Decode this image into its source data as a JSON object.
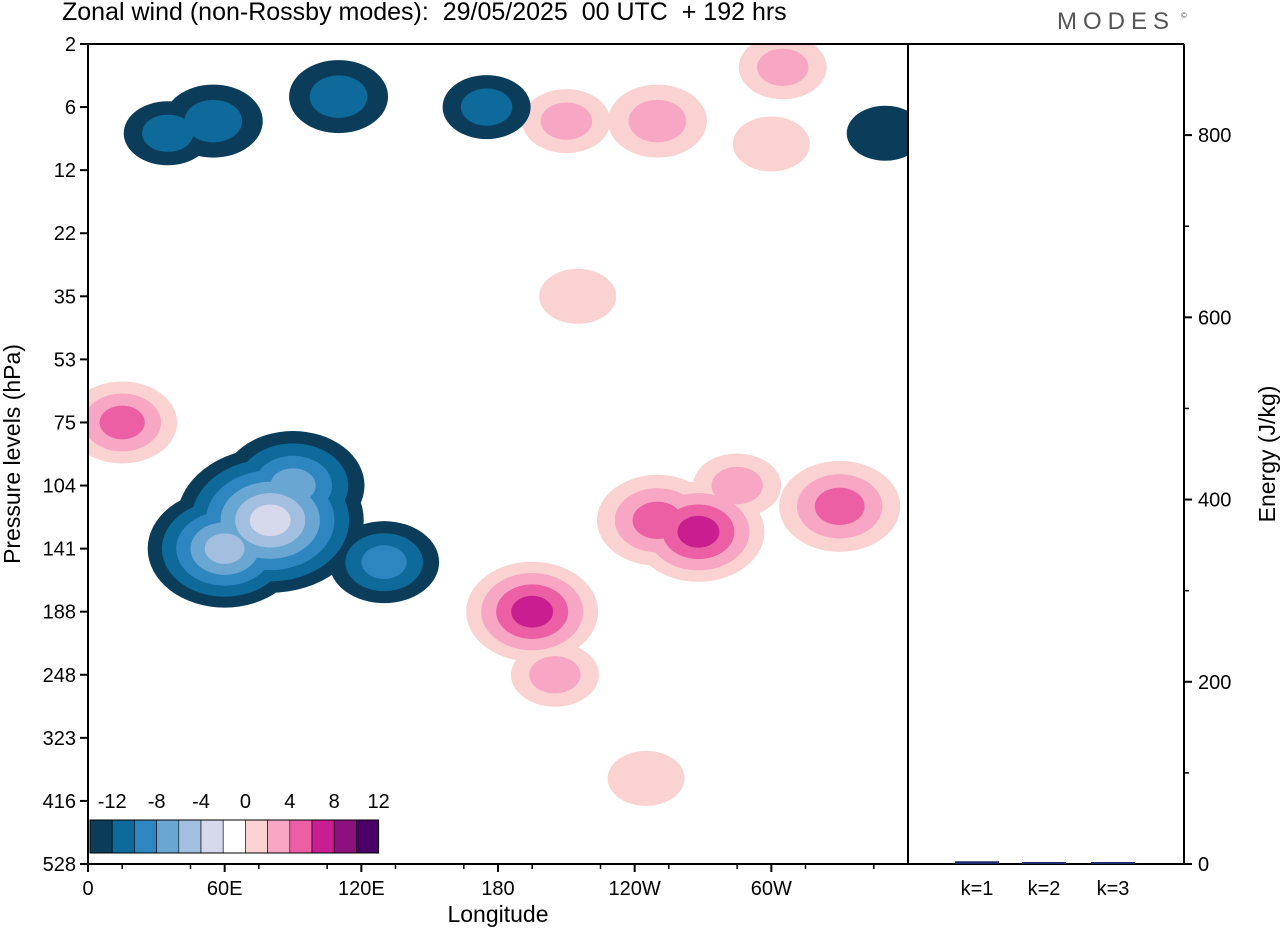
{
  "title": "Zonal wind (non-Rossby modes):  29/05/2025  00 UTC  + 192 hrs",
  "logo": "MODES",
  "logo_mark": "©",
  "colors": {
    "neg": [
      "#0b3d5a",
      "#0e6a9b",
      "#2e86c1",
      "#6aa6d2",
      "#a3bfe0",
      "#d5d9eb"
    ],
    "pos": [
      "#fbd2d2",
      "#f7a6c3",
      "#ec5fa4",
      "#c81e8f",
      "#8e0f7e",
      "#4b0068"
    ],
    "bar": "#1a2a6c"
  },
  "chart_data": [
    {
      "type": "heatmap",
      "title": "Zonal wind (non-Rossby modes):  29/05/2025  00 UTC  + 192 hrs",
      "xlabel": "Longitude",
      "ylabel": "Pressure levels (hPa)",
      "x_ticks": [
        "0",
        "60E",
        "120E",
        "180",
        "120W",
        "60W"
      ],
      "y_ticks": [
        "2",
        "6",
        "12",
        "22",
        "35",
        "53",
        "75",
        "104",
        "141",
        "188",
        "248",
        "323",
        "416",
        "528"
      ],
      "colorbar": {
        "tick_labels": [
          "-12",
          "-8",
          "-4",
          "0",
          "4",
          "8",
          "12"
        ],
        "levels": [
          -14,
          -12,
          -10,
          -8,
          -6,
          -4,
          -2,
          2,
          4,
          6,
          8,
          10,
          12,
          14
        ]
      },
      "features": [
        {
          "lon": 60,
          "level": 141,
          "value": -10
        },
        {
          "lon": 80,
          "level": 123,
          "value": -13
        },
        {
          "lon": 90,
          "level": 104,
          "value": -9
        },
        {
          "lon": 130,
          "level": 150,
          "value": -6
        },
        {
          "lon": 15,
          "level": 75,
          "value": 6
        },
        {
          "lon": 195,
          "level": 188,
          "value": 8
        },
        {
          "lon": 250,
          "level": 123,
          "value": 7
        },
        {
          "lon": 268,
          "level": 130,
          "value": 8
        },
        {
          "lon": 330,
          "level": 115,
          "value": 7
        },
        {
          "lon": 285,
          "level": 104,
          "value": 4
        },
        {
          "lon": 205,
          "level": 248,
          "value": 4
        },
        {
          "lon": 245,
          "level": 380,
          "value": 3
        },
        {
          "lon": 305,
          "level": 3,
          "value": 4
        },
        {
          "lon": 250,
          "level": 7,
          "value": 5
        },
        {
          "lon": 210,
          "level": 7,
          "value": 4
        },
        {
          "lon": 110,
          "level": 5,
          "value": -5
        },
        {
          "lon": 55,
          "level": 7,
          "value": -5
        },
        {
          "lon": 35,
          "level": 8,
          "value": -4
        },
        {
          "lon": 175,
          "level": 6,
          "value": -4
        },
        {
          "lon": 215,
          "level": 35,
          "value": 3
        },
        {
          "lon": 300,
          "level": 9,
          "value": 3
        },
        {
          "lon": 350,
          "level": 8,
          "value": -3
        }
      ]
    },
    {
      "type": "bar",
      "ylabel": "Energy (J/kg)",
      "categories": [
        "k=1",
        "k=2",
        "k=3"
      ],
      "values": [
        3,
        1,
        1
      ],
      "ylim": [
        0,
        900
      ],
      "y_ticks": [
        0,
        200,
        400,
        600,
        800
      ]
    }
  ]
}
